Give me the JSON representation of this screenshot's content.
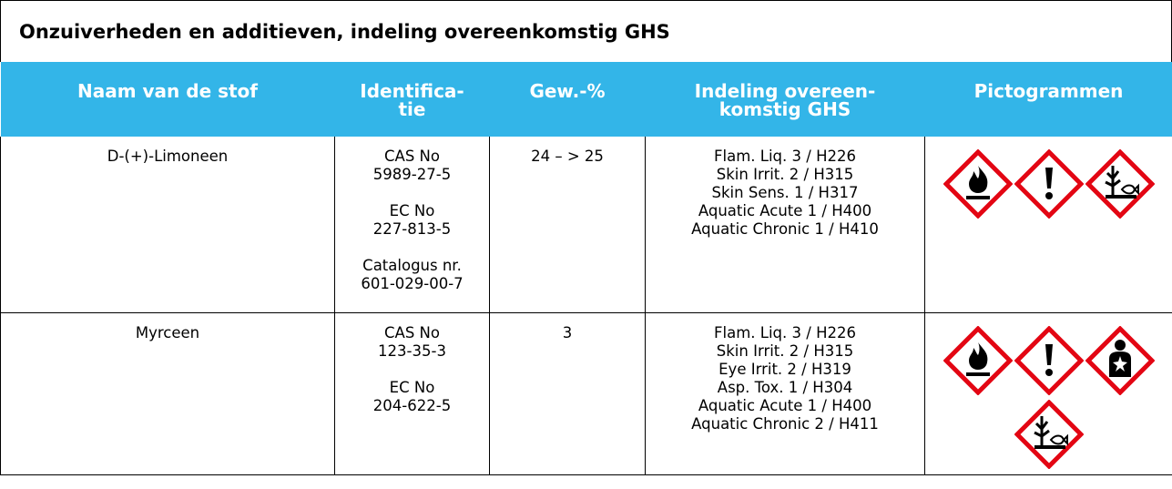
{
  "header": {
    "title": "Onzuiverheden en additieven, indeling overeenkomstig GHS"
  },
  "table": {
    "columns": [
      [
        "Naam van de stof"
      ],
      [
        "Identifica-",
        "tie"
      ],
      [
        "Gew.-%"
      ],
      [
        "Indeling overeen-",
        "komstig GHS"
      ],
      [
        "Pictogrammen"
      ]
    ],
    "rows": [
      {
        "name": "D-(+)-Limoneen",
        "identification": [
          [
            "CAS No",
            "5989-27-5"
          ],
          [
            "EC No",
            "227-813-5"
          ],
          [
            "Catalogus nr.",
            "601-029-00-7"
          ]
        ],
        "weight": "24 – > 25",
        "classification": [
          "Flam. Liq. 3 / H226",
          "Skin Irrit. 2 / H315",
          "Skin Sens. 1 / H317",
          "Aquatic Acute 1 / H400",
          "Aquatic Chronic 1 / H410"
        ]
      },
      {
        "name": "Myrceen",
        "identification": [
          [
            "CAS No",
            "123-35-3"
          ],
          [
            "EC No",
            "204-622-5"
          ]
        ],
        "weight": "3",
        "classification": [
          "Flam. Liq. 3 / H226",
          "Skin Irrit. 2 / H315",
          "Eye Irrit. 2 / H319",
          "Asp. Tox. 1 / H304",
          "Aquatic Acute 1 / H400",
          "Aquatic Chronic 2 / H411"
        ]
      }
    ]
  }
}
